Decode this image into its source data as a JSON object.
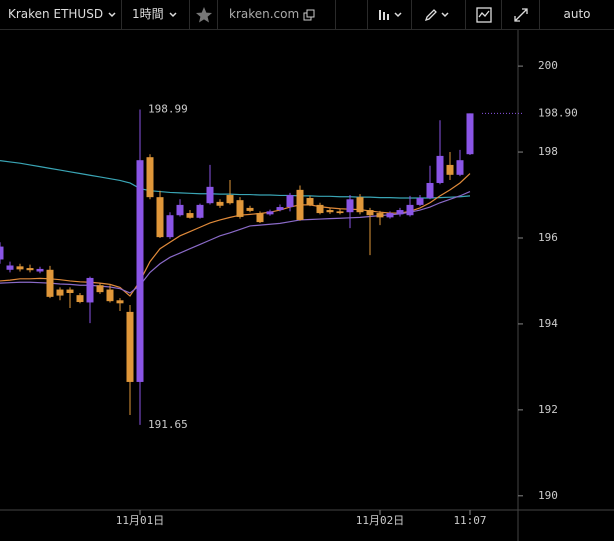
{
  "toolbar": {
    "symbol": "Kraken ETHUSD",
    "interval": "1時間",
    "site": "kraken.com",
    "scale": "auto"
  },
  "chart_data": {
    "type": "candlestick",
    "categories": [
      null,
      null,
      null,
      null,
      null,
      null,
      null,
      null,
      null,
      null,
      null,
      null,
      null,
      null,
      "11月01日",
      null,
      null,
      null,
      null,
      null,
      null,
      null,
      null,
      null,
      null,
      null,
      null,
      null,
      null,
      null,
      null,
      null,
      null,
      null,
      null,
      null,
      null,
      null,
      "11月02日",
      null,
      null,
      null,
      null,
      null,
      null,
      null,
      null,
      "11:07"
    ],
    "open": [
      195.5,
      195.26,
      195.34,
      195.3,
      195.22,
      195.26,
      194.8,
      194.8,
      194.67,
      194.5,
      194.9,
      194.8,
      194.55,
      194.28,
      192.65,
      197.88,
      196.95,
      196.02,
      196.53,
      196.58,
      196.47,
      196.81,
      196.84,
      197.0,
      196.88,
      196.7,
      196.58,
      196.55,
      196.65,
      196.72,
      197.12,
      196.93,
      196.77,
      196.65,
      196.62,
      196.6,
      196.95,
      196.65,
      196.58,
      196.48,
      196.55,
      196.53,
      196.77,
      196.93,
      197.28,
      197.7,
      197.47,
      197.95
    ],
    "high": [
      195.9,
      195.45,
      195.4,
      195.38,
      195.33,
      195.35,
      194.85,
      194.85,
      194.72,
      195.1,
      194.95,
      194.9,
      194.6,
      194.44,
      198.99,
      197.95,
      197.1,
      196.6,
      196.9,
      196.65,
      196.8,
      197.7,
      196.9,
      197.35,
      196.95,
      196.75,
      196.62,
      196.66,
      196.78,
      197.05,
      197.22,
      196.98,
      196.82,
      196.7,
      196.68,
      197.0,
      197.02,
      196.7,
      196.63,
      196.62,
      196.7,
      196.98,
      197.0,
      197.68,
      198.74,
      198.0,
      198.05,
      198.9
    ],
    "low": [
      195.4,
      195.2,
      195.22,
      195.2,
      195.18,
      194.6,
      194.55,
      194.37,
      194.48,
      194.02,
      194.7,
      194.5,
      194.3,
      191.88,
      191.65,
      196.9,
      196.0,
      195.98,
      196.5,
      196.45,
      196.45,
      196.78,
      196.7,
      196.78,
      196.45,
      196.6,
      196.35,
      196.52,
      196.62,
      196.62,
      196.4,
      196.74,
      196.55,
      196.56,
      196.55,
      196.23,
      196.55,
      195.6,
      196.3,
      196.45,
      196.5,
      196.5,
      196.74,
      196.9,
      197.25,
      197.35,
      197.44,
      197.93
    ],
    "close": [
      195.8,
      195.36,
      195.27,
      195.25,
      195.28,
      194.63,
      194.66,
      194.72,
      194.51,
      195.07,
      194.74,
      194.53,
      194.48,
      192.65,
      197.81,
      196.95,
      196.02,
      196.53,
      196.77,
      196.47,
      196.77,
      197.19,
      196.75,
      196.81,
      196.49,
      196.63,
      196.37,
      196.62,
      196.72,
      197.0,
      196.42,
      196.77,
      196.58,
      196.6,
      196.58,
      196.9,
      196.6,
      196.53,
      196.48,
      196.58,
      196.65,
      196.77,
      196.93,
      197.28,
      197.91,
      197.47,
      197.81,
      198.9
    ],
    "up_color": "#8a55e6",
    "down_color": "#e0973a",
    "lines": [
      {
        "color": "#3aa5b5",
        "values": [
          197.8,
          197.77,
          197.74,
          197.7,
          197.66,
          197.62,
          197.58,
          197.54,
          197.5,
          197.46,
          197.42,
          197.38,
          197.34,
          197.28,
          197.15,
          197.1,
          197.08,
          197.06,
          197.05,
          197.04,
          197.03,
          197.03,
          197.02,
          197.02,
          197.01,
          197.01,
          197.0,
          197.0,
          196.99,
          196.99,
          196.98,
          196.98,
          196.97,
          196.97,
          196.96,
          196.96,
          196.95,
          196.95,
          196.94,
          196.94,
          196.93,
          196.93,
          196.93,
          196.93,
          196.94,
          196.95,
          196.96,
          196.98
        ]
      },
      {
        "color": "#e08a3a",
        "values": [
          195.0,
          195.02,
          195.05,
          195.05,
          195.06,
          195.05,
          195.03,
          195.0,
          194.98,
          194.97,
          194.95,
          194.92,
          194.85,
          194.65,
          195.0,
          195.45,
          195.75,
          195.9,
          196.05,
          196.15,
          196.25,
          196.35,
          196.42,
          196.48,
          196.53,
          196.55,
          196.57,
          196.6,
          196.65,
          196.72,
          196.77,
          196.77,
          196.73,
          196.7,
          196.68,
          196.67,
          196.66,
          196.63,
          196.6,
          196.58,
          196.58,
          196.62,
          196.7,
          196.82,
          196.98,
          197.12,
          197.28,
          197.5
        ]
      },
      {
        "color": "#8a6ac8",
        "values": [
          194.95,
          194.96,
          194.97,
          194.97,
          194.96,
          194.95,
          194.93,
          194.92,
          194.9,
          194.9,
          194.88,
          194.86,
          194.82,
          194.72,
          194.9,
          195.2,
          195.4,
          195.55,
          195.65,
          195.75,
          195.85,
          195.95,
          196.05,
          196.12,
          196.2,
          196.28,
          196.3,
          196.32,
          196.34,
          196.38,
          196.42,
          196.43,
          196.44,
          196.45,
          196.46,
          196.47,
          196.48,
          196.5,
          196.52,
          196.54,
          196.56,
          196.6,
          196.65,
          196.72,
          196.82,
          196.9,
          196.98,
          197.08
        ]
      }
    ],
    "ylim": [
      189.67,
      200.84
    ],
    "yticks": [
      190,
      192,
      194,
      196,
      198,
      200
    ],
    "max_label": 198.99,
    "min_label": 191.65,
    "last_price": {
      "value": 198.9,
      "label": "198.90"
    }
  }
}
